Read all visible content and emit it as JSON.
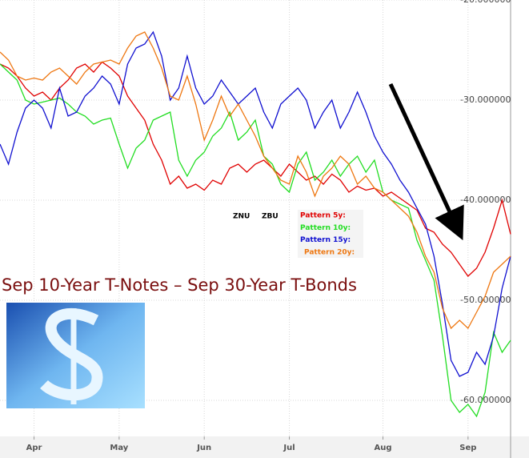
{
  "chart_data": {
    "type": "line",
    "title": "Sep 10-Year T-Notes – Sep 30-Year T-Bonds",
    "symbols": [
      "ZNU",
      "ZBU"
    ],
    "xlim": [
      0,
      60
    ],
    "xticks": [
      {
        "value": 4,
        "label": "Apr"
      },
      {
        "value": 14,
        "label": "May"
      },
      {
        "value": 24,
        "label": "Jun"
      },
      {
        "value": 34,
        "label": "Jul"
      },
      {
        "value": 45,
        "label": "Aug"
      },
      {
        "value": 55,
        "label": "Sep"
      }
    ],
    "ylim": [
      -63.6,
      -20
    ],
    "yticks": [
      {
        "value": -20,
        "label": "-20.000000"
      },
      {
        "value": -30,
        "label": "-30.000000"
      },
      {
        "value": -40,
        "label": "-40.000000"
      },
      {
        "value": -50,
        "label": "-50.000000"
      },
      {
        "value": -60,
        "label": "-60.000000"
      }
    ],
    "grid": true,
    "series": [
      {
        "name": "Pattern 5y:",
        "color": "#e00000",
        "values": [
          -26.4,
          -26.8,
          -27.6,
          -28.8,
          -29.6,
          -29.2,
          -30,
          -28.8,
          -28,
          -26.8,
          -26.4,
          -27.2,
          -26.2,
          -26.8,
          -27.6,
          -29.6,
          -30.8,
          -32,
          -34.4,
          -36,
          -38.4,
          -37.6,
          -38.8,
          -38.4,
          -39,
          -38,
          -38.4,
          -36.8,
          -36.4,
          -37.2,
          -36.4,
          -36,
          -36.8,
          -37.6,
          -36.4,
          -37.2,
          -38,
          -37.6,
          -38.4,
          -37.4,
          -38,
          -39.2,
          -38.6,
          -39,
          -38.8,
          -39.6,
          -39.2,
          -39.8,
          -40.4,
          -41,
          -42.8,
          -43.2,
          -44.4,
          -45.2,
          -46.4,
          -47.6,
          -46.8,
          -45.2,
          -42.8,
          -40,
          -43.4
        ]
      },
      {
        "name": "Pattern 10y:",
        "color": "#22dd22",
        "values": [
          -26.4,
          -27.2,
          -28,
          -30,
          -30.4,
          -30.2,
          -30,
          -29.8,
          -30.4,
          -31.2,
          -31.6,
          -32.4,
          -32,
          -31.8,
          -34.4,
          -36.8,
          -34.8,
          -34,
          -32,
          -31.6,
          -31.2,
          -36,
          -37.6,
          -36,
          -35.2,
          -33.6,
          -32.8,
          -31.2,
          -34,
          -33.2,
          -32,
          -35.6,
          -36.4,
          -38.4,
          -39.2,
          -36.4,
          -35.2,
          -38,
          -37.2,
          -36,
          -37.6,
          -36.4,
          -35.6,
          -37.2,
          -36,
          -39.2,
          -40,
          -40.4,
          -40.8,
          -44,
          -46,
          -48,
          -53.6,
          -60,
          -61.2,
          -60.4,
          -61.6,
          -59.2,
          -53.2,
          -55.2,
          -54
        ]
      },
      {
        "name": "Pattern 15y:",
        "color": "#1010d0",
        "values": [
          -34.4,
          -36.4,
          -33.2,
          -30.8,
          -30,
          -30.8,
          -32.8,
          -28.8,
          -31.6,
          -31.2,
          -29.6,
          -28.8,
          -27.6,
          -28.4,
          -30.4,
          -26.4,
          -24.8,
          -24.4,
          -23.2,
          -25.6,
          -30,
          -28.8,
          -25.6,
          -28.8,
          -30.4,
          -29.6,
          -28,
          -29.2,
          -30.4,
          -29.6,
          -28.8,
          -31.2,
          -32.8,
          -30.4,
          -29.6,
          -28.8,
          -30,
          -32.8,
          -31.2,
          -30,
          -32.8,
          -31.2,
          -29.2,
          -31.2,
          -33.6,
          -35.2,
          -36.4,
          -38,
          -39.2,
          -40.8,
          -42.4,
          -45.6,
          -50.4,
          -56,
          -57.6,
          -57.2,
          -55.2,
          -56.4,
          -53.6,
          -48.8,
          -45.6
        ]
      },
      {
        "name": "Pattern 20y:",
        "color": "#ee7711",
        "values": [
          -25.2,
          -26,
          -27.6,
          -28,
          -27.8,
          -28,
          -27.2,
          -26.8,
          -27.6,
          -28.4,
          -27.2,
          -26.4,
          -26.2,
          -26,
          -26.4,
          -24.8,
          -23.6,
          -23.2,
          -24.8,
          -26.8,
          -29.6,
          -30,
          -27.6,
          -30.4,
          -34,
          -32,
          -29.6,
          -31.6,
          -30.4,
          -32,
          -33.6,
          -35.6,
          -36.8,
          -38,
          -38.4,
          -35.6,
          -37.2,
          -39.6,
          -37.6,
          -36.8,
          -35.6,
          -36.4,
          -38.4,
          -37.6,
          -38.8,
          -39.2,
          -40,
          -40.8,
          -41.6,
          -43.2,
          -45.6,
          -47.2,
          -50.8,
          -52.8,
          -52,
          -52.8,
          -51.2,
          -49.6,
          -47.2,
          -46.4,
          -45.6
        ]
      }
    ]
  }
}
